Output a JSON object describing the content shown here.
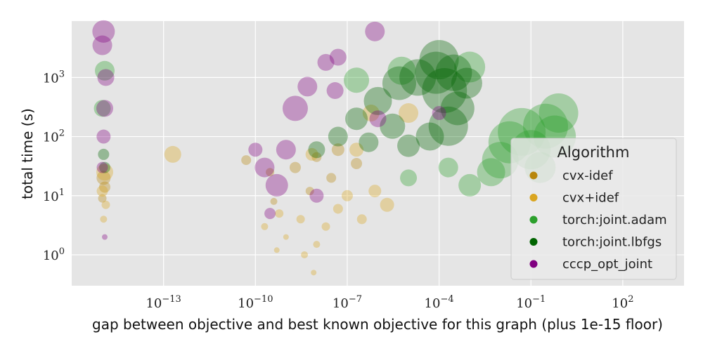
{
  "chart_data": {
    "type": "scatter",
    "title": "",
    "xlabel": "gap between objective and best known objective for this graph (plus 1e-15 floor)",
    "ylabel": "total time (s)",
    "x_scale": "log",
    "y_scale": "log",
    "xlim": [
      1e-16,
      10000.0
    ],
    "ylim": [
      0.3,
      9000
    ],
    "x_ticks": [
      1e-13,
      1e-10,
      1e-07,
      0.0001,
      0.1,
      100.0
    ],
    "x_tick_labels": [
      {
        "base": "10",
        "exp": "−13"
      },
      {
        "base": "10",
        "exp": "−10"
      },
      {
        "base": "10",
        "exp": "−7"
      },
      {
        "base": "10",
        "exp": "−4"
      },
      {
        "base": "10",
        "exp": "−1"
      },
      {
        "base": "10",
        "exp": "2"
      }
    ],
    "y_ticks": [
      1,
      10,
      100,
      1000
    ],
    "y_tick_labels": [
      {
        "base": "10",
        "exp": "0"
      },
      {
        "base": "10",
        "exp": "1"
      },
      {
        "base": "10",
        "exp": "2"
      },
      {
        "base": "10",
        "exp": "3"
      }
    ],
    "grid": true,
    "background": "#e5e5e5",
    "grid_color": "#ffffff",
    "legend": {
      "title": "Algorithm",
      "placement": "lower-right"
    },
    "series": [
      {
        "name": "cvx-idef",
        "color": "#b8860b",
        "points": [
          {
            "x": 1.1e-15,
            "y": 20,
            "s": 10
          },
          {
            "x": 1e-15,
            "y": 9,
            "s": 6
          },
          {
            "x": 1.2e-15,
            "y": 14,
            "s": 8
          },
          {
            "x": 5e-11,
            "y": 40,
            "s": 7
          },
          {
            "x": 3e-10,
            "y": 25,
            "s": 6
          },
          {
            "x": 2e-09,
            "y": 30,
            "s": 8
          },
          {
            "x": 1e-08,
            "y": 45,
            "s": 7
          },
          {
            "x": 5e-08,
            "y": 60,
            "s": 9
          },
          {
            "x": 2e-07,
            "y": 35,
            "s": 8
          },
          {
            "x": 4e-10,
            "y": 8,
            "s": 5
          },
          {
            "x": 6e-09,
            "y": 12,
            "s": 6
          },
          {
            "x": 3e-08,
            "y": 20,
            "s": 7
          }
        ]
      },
      {
        "name": "cvx+idef",
        "color": "#daa520",
        "points": [
          {
            "x": 1e-15,
            "y": 12,
            "s": 8
          },
          {
            "x": 1.3e-15,
            "y": 7,
            "s": 6
          },
          {
            "x": 1.1e-15,
            "y": 4,
            "s": 5
          },
          {
            "x": 1.2e-15,
            "y": 25,
            "s": 12
          },
          {
            "x": 2e-13,
            "y": 50,
            "s": 12
          },
          {
            "x": 2e-10,
            "y": 3,
            "s": 5
          },
          {
            "x": 6e-10,
            "y": 5,
            "s": 6
          },
          {
            "x": 1e-09,
            "y": 2,
            "s": 4
          },
          {
            "x": 3e-09,
            "y": 4,
            "s": 6
          },
          {
            "x": 8e-09,
            "y": 0.5,
            "s": 4
          },
          {
            "x": 2e-08,
            "y": 3,
            "s": 6
          },
          {
            "x": 5e-08,
            "y": 6,
            "s": 7
          },
          {
            "x": 1e-07,
            "y": 10,
            "s": 8
          },
          {
            "x": 3e-07,
            "y": 4,
            "s": 7
          },
          {
            "x": 8e-07,
            "y": 12,
            "s": 9
          },
          {
            "x": 2e-06,
            "y": 7,
            "s": 10
          },
          {
            "x": 1e-08,
            "y": 1.5,
            "s": 5
          },
          {
            "x": 4e-09,
            "y": 1,
            "s": 5
          },
          {
            "x": 5e-10,
            "y": 1.2,
            "s": 4
          },
          {
            "x": 6e-07,
            "y": 250,
            "s": 12
          },
          {
            "x": 1e-05,
            "y": 250,
            "s": 14
          },
          {
            "x": 2e-07,
            "y": 60,
            "s": 10
          },
          {
            "x": 7e-09,
            "y": 50,
            "s": 9
          }
        ]
      },
      {
        "name": "torch:joint.adam",
        "color": "#2ca02c",
        "points": [
          {
            "x": 1.2e-15,
            "y": 1300,
            "s": 14
          },
          {
            "x": 1e-15,
            "y": 300,
            "s": 12
          },
          {
            "x": 0.01,
            "y": 40,
            "s": 26
          },
          {
            "x": 0.02,
            "y": 80,
            "s": 30
          },
          {
            "x": 0.05,
            "y": 120,
            "s": 34
          },
          {
            "x": 0.1,
            "y": 60,
            "s": 28
          },
          {
            "x": 0.3,
            "y": 150,
            "s": 32
          },
          {
            "x": 0.8,
            "y": 250,
            "s": 28
          },
          {
            "x": 0.005,
            "y": 25,
            "s": 20
          },
          {
            "x": 0.2,
            "y": 30,
            "s": 22
          },
          {
            "x": 0.6,
            "y": 100,
            "s": 30
          },
          {
            "x": 0.001,
            "y": 15,
            "s": 16
          },
          {
            "x": 1e-05,
            "y": 20,
            "s": 12
          },
          {
            "x": 0.0002,
            "y": 30,
            "s": 14
          },
          {
            "x": 6e-06,
            "y": 1300,
            "s": 20
          },
          {
            "x": 0.001,
            "y": 1500,
            "s": 22
          },
          {
            "x": 2e-07,
            "y": 900,
            "s": 18
          }
        ]
      },
      {
        "name": "torch:joint.lbfgs",
        "color": "#006400",
        "points": [
          {
            "x": 1.1e-15,
            "y": 50,
            "s": 8
          },
          {
            "x": 1.2e-15,
            "y": 30,
            "s": 8
          },
          {
            "x": 1e-08,
            "y": 60,
            "s": 12
          },
          {
            "x": 5e-08,
            "y": 100,
            "s": 14
          },
          {
            "x": 2e-07,
            "y": 200,
            "s": 16
          },
          {
            "x": 1e-06,
            "y": 400,
            "s": 20
          },
          {
            "x": 5e-06,
            "y": 800,
            "s": 24
          },
          {
            "x": 2e-05,
            "y": 1000,
            "s": 26
          },
          {
            "x": 8e-05,
            "y": 1200,
            "s": 30
          },
          {
            "x": 0.00015,
            "y": 600,
            "s": 32
          },
          {
            "x": 0.0002,
            "y": 150,
            "s": 28
          },
          {
            "x": 0.0004,
            "y": 300,
            "s": 24
          },
          {
            "x": 0.0008,
            "y": 800,
            "s": 22
          },
          {
            "x": 5e-05,
            "y": 100,
            "s": 20
          },
          {
            "x": 1e-05,
            "y": 70,
            "s": 16
          },
          {
            "x": 3e-06,
            "y": 150,
            "s": 18
          },
          {
            "x": 5e-07,
            "y": 80,
            "s": 14
          },
          {
            "x": 0.0001,
            "y": 2000,
            "s": 28
          },
          {
            "x": 0.0003,
            "y": 1200,
            "s": 26
          }
        ]
      },
      {
        "name": "cccp_opt_joint",
        "color": "#800080",
        "points": [
          {
            "x": 1.1e-15,
            "y": 6000,
            "s": 16
          },
          {
            "x": 1e-15,
            "y": 3500,
            "s": 14
          },
          {
            "x": 1.3e-15,
            "y": 1000,
            "s": 12
          },
          {
            "x": 1.2e-15,
            "y": 300,
            "s": 12
          },
          {
            "x": 1.1e-15,
            "y": 100,
            "s": 10
          },
          {
            "x": 1e-15,
            "y": 30,
            "s": 8
          },
          {
            "x": 1.2e-15,
            "y": 2,
            "s": 4
          },
          {
            "x": 2e-10,
            "y": 30,
            "s": 14
          },
          {
            "x": 5e-10,
            "y": 15,
            "s": 16
          },
          {
            "x": 1e-09,
            "y": 60,
            "s": 14
          },
          {
            "x": 2e-09,
            "y": 300,
            "s": 18
          },
          {
            "x": 5e-09,
            "y": 700,
            "s": 14
          },
          {
            "x": 2e-08,
            "y": 1800,
            "s": 12
          },
          {
            "x": 5e-08,
            "y": 2200,
            "s": 12
          },
          {
            "x": 8e-07,
            "y": 6000,
            "s": 14
          },
          {
            "x": 3e-10,
            "y": 5,
            "s": 8
          },
          {
            "x": 1e-08,
            "y": 10,
            "s": 10
          },
          {
            "x": 4e-08,
            "y": 600,
            "s": 12
          },
          {
            "x": 1e-06,
            "y": 200,
            "s": 12
          },
          {
            "x": 0.0001,
            "y": 250,
            "s": 10
          },
          {
            "x": 1e-10,
            "y": 60,
            "s": 10
          }
        ]
      }
    ]
  }
}
